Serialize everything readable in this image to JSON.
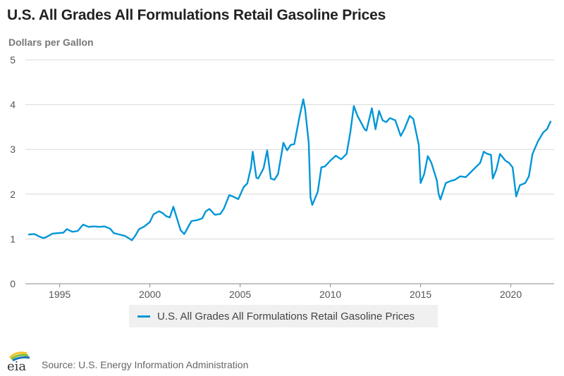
{
  "header": {
    "title": "U.S. All Grades All Formulations Retail Gasoline Prices",
    "units": "Dollars per Gallon"
  },
  "legend": {
    "label": "U.S. All Grades All Formulations Retail Gasoline Prices"
  },
  "footer": {
    "logo_text": "eia",
    "source": "Source: U.S. Energy Information Administration"
  },
  "colors": {
    "series": "#0096d7",
    "grid": "#d9d9d9",
    "axis": "#888888"
  },
  "chart_data": {
    "type": "line",
    "title": "U.S. All Grades All Formulations Retail Gasoline Prices",
    "ylabel": "Dollars per Gallon",
    "xlabel": "",
    "ylim": [
      0,
      5
    ],
    "xlim": [
      1993.1,
      2022.4
    ],
    "yticks": [
      0,
      1,
      2,
      3,
      4,
      5
    ],
    "xticks": [
      1995,
      2000,
      2005,
      2010,
      2015,
      2020
    ],
    "grid": true,
    "legend_position": "bottom",
    "series": [
      {
        "name": "U.S. All Grades All Formulations Retail Gasoline Prices",
        "x": [
          1993.3,
          1993.6,
          1993.9,
          1994.1,
          1994.3,
          1994.6,
          1994.9,
          1995.2,
          1995.4,
          1995.7,
          1996.0,
          1996.3,
          1996.6,
          1996.9,
          1997.2,
          1997.5,
          1997.8,
          1998.0,
          1998.3,
          1998.6,
          1998.9,
          1999.0,
          1999.2,
          1999.4,
          1999.7,
          2000.0,
          2000.2,
          2000.5,
          2000.7,
          2000.9,
          2001.1,
          2001.3,
          2001.5,
          2001.7,
          2001.9,
          2002.0,
          2002.3,
          2002.6,
          2002.9,
          2003.1,
          2003.3,
          2003.6,
          2003.9,
          2004.1,
          2004.4,
          2004.6,
          2004.9,
          2005.2,
          2005.4,
          2005.6,
          2005.7,
          2005.9,
          2006.0,
          2006.3,
          2006.5,
          2006.7,
          2006.9,
          2007.1,
          2007.4,
          2007.6,
          2007.8,
          2008.0,
          2008.3,
          2008.5,
          2008.6,
          2008.8,
          2008.9,
          2009.0,
          2009.3,
          2009.5,
          2009.7,
          2010.0,
          2010.3,
          2010.6,
          2010.9,
          2011.1,
          2011.3,
          2011.5,
          2011.7,
          2011.9,
          2012.0,
          2012.3,
          2012.5,
          2012.7,
          2012.9,
          2013.1,
          2013.3,
          2013.6,
          2013.9,
          2014.1,
          2014.4,
          2014.6,
          2014.9,
          2015.0,
          2015.2,
          2015.4,
          2015.6,
          2015.9,
          2016.0,
          2016.1,
          2016.4,
          2016.7,
          2016.9,
          2017.2,
          2017.5,
          2017.8,
          2018.0,
          2018.3,
          2018.5,
          2018.7,
          2018.9,
          2019.0,
          2019.2,
          2019.4,
          2019.7,
          2019.9,
          2020.1,
          2020.3,
          2020.5,
          2020.8,
          2021.0,
          2021.2,
          2021.5,
          2021.8,
          2022.0,
          2022.2
        ],
        "values": [
          1.1,
          1.11,
          1.05,
          1.02,
          1.05,
          1.12,
          1.13,
          1.14,
          1.22,
          1.16,
          1.18,
          1.32,
          1.27,
          1.28,
          1.27,
          1.28,
          1.23,
          1.13,
          1.1,
          1.07,
          1.0,
          0.97,
          1.08,
          1.22,
          1.28,
          1.38,
          1.55,
          1.62,
          1.58,
          1.51,
          1.48,
          1.72,
          1.46,
          1.2,
          1.11,
          1.18,
          1.4,
          1.42,
          1.46,
          1.62,
          1.67,
          1.54,
          1.56,
          1.68,
          1.98,
          1.95,
          1.89,
          2.16,
          2.24,
          2.6,
          2.95,
          2.37,
          2.35,
          2.58,
          2.98,
          2.35,
          2.32,
          2.45,
          3.15,
          2.98,
          3.1,
          3.12,
          3.75,
          4.12,
          3.9,
          3.15,
          1.93,
          1.76,
          2.05,
          2.6,
          2.62,
          2.75,
          2.86,
          2.78,
          2.9,
          3.37,
          3.97,
          3.75,
          3.6,
          3.45,
          3.42,
          3.92,
          3.45,
          3.86,
          3.65,
          3.61,
          3.7,
          3.65,
          3.3,
          3.45,
          3.75,
          3.68,
          3.1,
          2.25,
          2.45,
          2.85,
          2.7,
          2.31,
          2.0,
          1.88,
          2.25,
          2.3,
          2.32,
          2.4,
          2.38,
          2.5,
          2.58,
          2.7,
          2.95,
          2.9,
          2.88,
          2.35,
          2.55,
          2.9,
          2.75,
          2.7,
          2.6,
          1.95,
          2.2,
          2.25,
          2.4,
          2.9,
          3.18,
          3.38,
          3.45,
          3.62
        ]
      }
    ]
  }
}
